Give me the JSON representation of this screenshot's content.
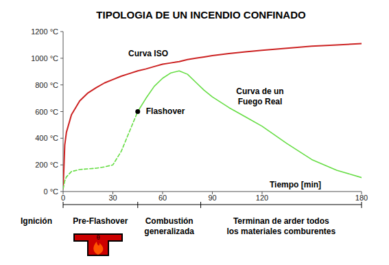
{
  "chart_data": {
    "type": "line",
    "title": "TIPOLOGIA DE UN INCENDIO CONFINADO",
    "x_label": "Tiempo [min]",
    "x": [
      0,
      1,
      2,
      5,
      10,
      15,
      20,
      25,
      30,
      35,
      40,
      45,
      50,
      55,
      60,
      65,
      70,
      75,
      80,
      85,
      90,
      100,
      110,
      120,
      135,
      150,
      165,
      180
    ],
    "xlim": [
      0,
      180
    ],
    "xticks": [
      0,
      30,
      60,
      90,
      120,
      180
    ],
    "ylim": [
      0,
      1200
    ],
    "yticks": [
      {
        "value": 0,
        "label": "0 °C"
      },
      {
        "value": 200,
        "label": "200 °C"
      },
      {
        "value": 400,
        "label": "400 °C"
      },
      {
        "value": 600,
        "label": "600 °C"
      },
      {
        "value": 800,
        "label": "800 °C"
      },
      {
        "value": 1000,
        "label": "1000 °C"
      },
      {
        "value": 1200,
        "label": "1200 °C"
      }
    ],
    "grid": false,
    "series": [
      {
        "name": "Curva ISO",
        "color": "#cc2222",
        "line_style": "solid",
        "values": [
          20,
          350,
          445,
          575,
          680,
          740,
          780,
          815,
          840,
          865,
          885,
          905,
          920,
          938,
          955,
          965,
          975,
          990,
          1000,
          1010,
          1020,
          1035,
          1048,
          1060,
          1075,
          1090,
          1100,
          1110
        ]
      },
      {
        "color": "#66dd44",
        "line_style": "dashed",
        "values": [
          20,
          80,
          110,
          150,
          165,
          170,
          175,
          185,
          200,
          300,
          450,
          600,
          null,
          null,
          null,
          null,
          null,
          null,
          null,
          null,
          null,
          null,
          null,
          null,
          null,
          null,
          null,
          null
        ]
      },
      {
        "name": "Curva de un Fuego Real",
        "color": "#66dd44",
        "line_style": "solid",
        "values": [
          null,
          null,
          null,
          null,
          null,
          null,
          null,
          null,
          null,
          null,
          null,
          600,
          700,
          790,
          850,
          890,
          905,
          880,
          820,
          760,
          710,
          630,
          560,
          490,
          360,
          240,
          160,
          105
        ]
      }
    ],
    "annotations": [
      {
        "text": "Flashover",
        "x": 45,
        "y": 600,
        "marker": "circle"
      }
    ],
    "phases": {
      "ignition": "Ignición",
      "symbol": "θ",
      "items": [
        {
          "label": [
            "Pre-Flashover"
          ],
          "start": 0,
          "end": 45
        },
        {
          "label": [
            "Combustión",
            "generalizada"
          ],
          "start": 45,
          "end": 83
        },
        {
          "label": [
            "Terminan de arder todos",
            "los materiales comburentes"
          ],
          "start": 83,
          "end": 180
        }
      ]
    }
  }
}
